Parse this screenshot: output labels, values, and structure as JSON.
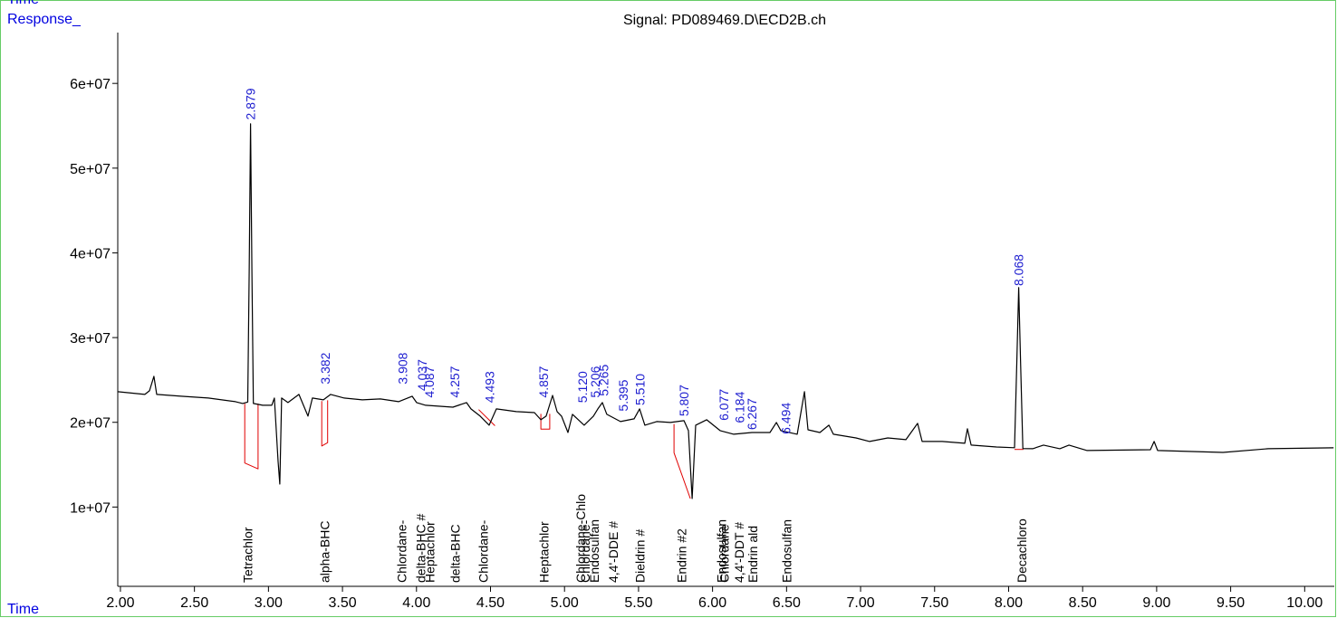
{
  "chart_data": {
    "type": "line",
    "title": "Signal: PD089469.D\\ECD2B.ch",
    "corner_label": "Time",
    "ylabel": "Response_",
    "xlabel": "Time",
    "xlim": [
      1.982,
      10.2
    ],
    "ylim": [
      0,
      66000000
    ],
    "xticks": [
      {
        "value": 2,
        "label": "2.00"
      },
      {
        "value": 2.5,
        "label": "2.50"
      },
      {
        "value": 3,
        "label": "3.00"
      },
      {
        "value": 3.5,
        "label": "3.50"
      },
      {
        "value": 4,
        "label": "4.00"
      },
      {
        "value": 4.5,
        "label": "4.50"
      },
      {
        "value": 5,
        "label": "5.00"
      },
      {
        "value": 5.5,
        "label": "5.50"
      },
      {
        "value": 6,
        "label": "6.00"
      },
      {
        "value": 6.5,
        "label": "6.50"
      },
      {
        "value": 7,
        "label": "7.00"
      },
      {
        "value": 7.5,
        "label": "7.50"
      },
      {
        "value": 8,
        "label": "8.00"
      },
      {
        "value": 8.5,
        "label": "8.50"
      },
      {
        "value": 9,
        "label": "9.00"
      },
      {
        "value": 9.5,
        "label": "9.50"
      },
      {
        "value": 10,
        "label": "10.00"
      }
    ],
    "yticks": [
      {
        "value": 10000000,
        "label": "1e+07"
      },
      {
        "value": 20000000,
        "label": "2e+07"
      },
      {
        "value": 30000000,
        "label": "3e+07"
      },
      {
        "value": 40000000,
        "label": "4e+07"
      },
      {
        "value": 50000000,
        "label": "5e+07"
      },
      {
        "value": 60000000,
        "label": "6e+07"
      }
    ],
    "series": [
      {
        "color": "#000000",
        "x": [
          1.982,
          2.165,
          2.196,
          2.226,
          2.245,
          2.41,
          2.594,
          2.777,
          2.826,
          2.86,
          2.87,
          2.879,
          2.888,
          2.898,
          2.961,
          3.022,
          3.04,
          3.065,
          3.077,
          3.089,
          3.132,
          3.206,
          3.267,
          3.297,
          3.371,
          3.42,
          3.512,
          3.634,
          3.756,
          3.879,
          3.971,
          4.001,
          4.062,
          4.246,
          4.338,
          4.368,
          4.43,
          4.491,
          4.54,
          4.674,
          4.797,
          4.84,
          4.876,
          4.919,
          4.95,
          4.98,
          5.023,
          5.054,
          5.133,
          5.195,
          5.225,
          5.256,
          5.286,
          5.378,
          5.47,
          5.507,
          5.543,
          5.623,
          5.715,
          5.807,
          5.837,
          5.862,
          5.886,
          5.96,
          6.051,
          6.143,
          6.266,
          6.388,
          6.431,
          6.461,
          6.572,
          6.621,
          6.645,
          6.725,
          6.786,
          6.816,
          6.969,
          7.061,
          7.184,
          7.306,
          7.385,
          7.416,
          7.551,
          7.704,
          7.722,
          7.747,
          7.918,
          8.04,
          8.055,
          8.068,
          8.081,
          8.096,
          8.163,
          8.236,
          8.346,
          8.408,
          8.53,
          8.958,
          8.983,
          9.007,
          9.448,
          9.754,
          10.195
        ],
        "values": [
          23610000,
          23290000,
          23720000,
          25430000,
          23290000,
          23080000,
          22860000,
          22440000,
          22220000,
          22400000,
          37820000,
          55240000,
          37820000,
          22220000,
          22010000,
          22010000,
          22860000,
          15380000,
          12710000,
          22860000,
          22330000,
          23290000,
          20730000,
          22860000,
          22650000,
          23290000,
          22860000,
          22650000,
          22760000,
          22440000,
          23080000,
          22330000,
          22010000,
          21790000,
          22330000,
          21580000,
          20730000,
          19660000,
          21580000,
          21260000,
          21150000,
          20300000,
          20730000,
          23180000,
          21260000,
          20730000,
          18800000,
          20940000,
          19660000,
          20730000,
          21580000,
          22330000,
          20940000,
          20090000,
          20410000,
          21580000,
          19660000,
          20090000,
          19980000,
          20190000,
          19020000,
          11000000,
          19660000,
          20300000,
          19020000,
          18590000,
          18800000,
          18800000,
          19980000,
          19020000,
          18590000,
          23610000,
          19120000,
          18800000,
          19660000,
          18590000,
          18160000,
          17740000,
          18160000,
          17950000,
          19870000,
          17740000,
          17740000,
          17520000,
          19230000,
          17310000,
          17090000,
          17000000,
          27000000,
          35900000,
          27000000,
          16900000,
          16880000,
          17310000,
          16880000,
          17310000,
          16670000,
          16770000,
          17740000,
          16670000,
          16450000,
          16880000,
          16990000
        ]
      }
    ],
    "baselines": {
      "color": "#e00000",
      "pieces": [
        {
          "x": [
            2.84,
            2.84,
            2.93,
            2.93
          ],
          "values": [
            22200000,
            15200000,
            14500000,
            22200000
          ]
        },
        {
          "x": [
            3.36,
            3.36,
            3.4,
            3.4
          ],
          "values": [
            22500000,
            17200000,
            17600000,
            22600000
          ]
        },
        {
          "x": [
            4.42,
            4.53
          ],
          "values": [
            21500000,
            19600000
          ]
        },
        {
          "x": [
            4.84,
            4.84,
            4.9,
            4.9
          ],
          "values": [
            21000000,
            19200000,
            19200000,
            21000000
          ]
        },
        {
          "x": [
            5.74,
            5.74,
            5.85
          ],
          "values": [
            19800000,
            16400000,
            11000000
          ]
        },
        {
          "x": [
            8.04,
            8.1
          ],
          "values": [
            16800000,
            16800000
          ]
        }
      ]
    },
    "peaks": [
      {
        "x": 2.879,
        "label": "2.879",
        "y": 55700000
      },
      {
        "x": 3.382,
        "label": "3.382",
        "y": 24500000
      },
      {
        "x": 3.908,
        "label": "3.908",
        "y": 24500000
      },
      {
        "x": 4.037,
        "label": "4.037",
        "y": 23700000
      },
      {
        "x": 4.087,
        "label": "4.087",
        "y": 22900000
      },
      {
        "x": 4.257,
        "label": "4.257",
        "y": 22900000
      },
      {
        "x": 4.493,
        "label": "4.493",
        "y": 22300000
      },
      {
        "x": 4.857,
        "label": "4.857",
        "y": 22900000
      },
      {
        "x": 5.12,
        "label": "5.120",
        "y": 22300000
      },
      {
        "x": 5.206,
        "label": "5.206",
        "y": 22900000
      },
      {
        "x": 5.265,
        "label": "5.265",
        "y": 23100000
      },
      {
        "x": 5.395,
        "label": "5.395",
        "y": 21300000
      },
      {
        "x": 5.51,
        "label": "5.510",
        "y": 22000000
      },
      {
        "x": 5.807,
        "label": "5.807",
        "y": 20700000
      },
      {
        "x": 6.077,
        "label": "6.077",
        "y": 20200000
      },
      {
        "x": 6.184,
        "label": "6.184",
        "y": 19900000
      },
      {
        "x": 6.267,
        "label": "6.267",
        "y": 19100000
      },
      {
        "x": 6.494,
        "label": "6.494",
        "y": 18600000
      },
      {
        "x": 8.068,
        "label": "8.068",
        "y": 36100000
      }
    ],
    "compounds": [
      {
        "x": 2.86,
        "label": "Tetrachlor"
      },
      {
        "x": 3.38,
        "label": "alpha-BHC"
      },
      {
        "x": 3.9,
        "label": "Chlordane-"
      },
      {
        "x": 4.03,
        "label": "delta-BHC #"
      },
      {
        "x": 4.09,
        "label": "Heptachlor"
      },
      {
        "x": 4.26,
        "label": "delta-BHC"
      },
      {
        "x": 4.45,
        "label": "Chlordane-"
      },
      {
        "x": 4.86,
        "label": "Heptachlor"
      },
      {
        "x": 5.11,
        "label": "Chlordane-Chlo"
      },
      {
        "x": 5.14,
        "label": "Chlordane-"
      },
      {
        "x": 5.2,
        "label": "Endosulfan"
      },
      {
        "x": 5.33,
        "label": "4,4'-DDE #"
      },
      {
        "x": 5.51,
        "label": "Dieldrin #"
      },
      {
        "x": 5.79,
        "label": "Endrin #2"
      },
      {
        "x": 6.06,
        "label": "Endosulfan"
      },
      {
        "x": 6.08,
        "label": "Chlordane"
      },
      {
        "x": 6.18,
        "label": "4,4'-DDT #"
      },
      {
        "x": 6.27,
        "label": "Endrin ald"
      },
      {
        "x": 6.5,
        "label": "Endosulfan"
      },
      {
        "x": 8.09,
        "label": "Decachloro"
      }
    ]
  }
}
